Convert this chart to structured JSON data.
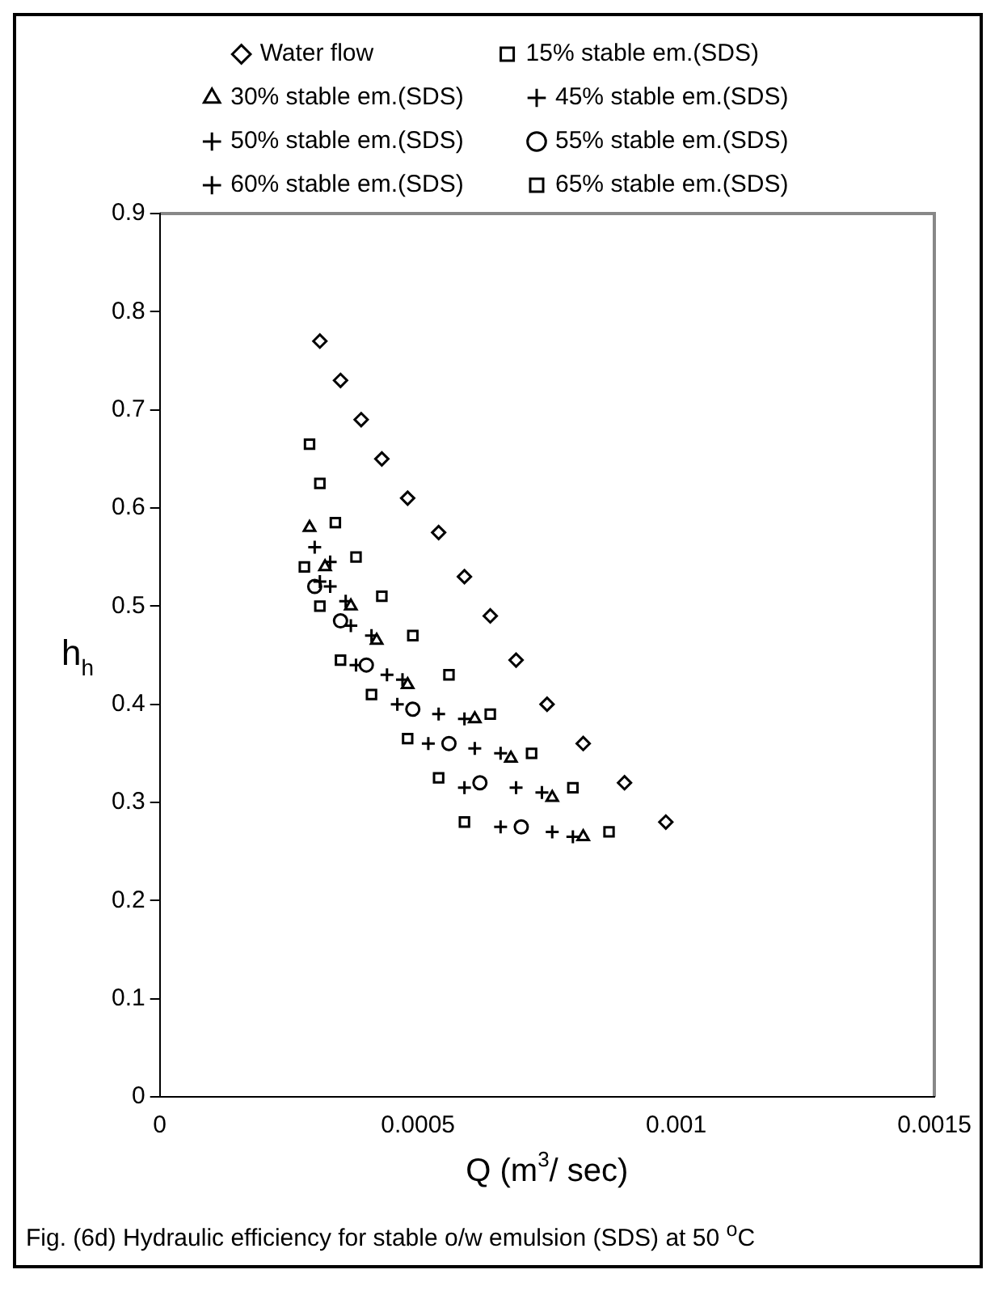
{
  "chart_data": {
    "type": "scatter",
    "xlabel": "Q (m$^{3}$/ sec)",
    "ylabel": "h$_{h}$",
    "annotations": [
      "Fig. (6d) Hydraulic efficiency for stable o/w emulsion (SDS)  at 50 $^{o}$C"
    ],
    "xlim": [
      0,
      0.0015
    ],
    "xticks": [
      0,
      0.0005,
      0.001,
      0.0015
    ],
    "ylim": [
      0,
      0.9
    ],
    "yticks": [
      0,
      0.1,
      0.2,
      0.3,
      0.4,
      0.5,
      0.6,
      0.7,
      0.8,
      0.9
    ],
    "grid": false,
    "legend": "top",
    "series": [
      {
        "name": "Water flow",
        "color": "#000000",
        "marker": "diamond",
        "x": [
          0.00031,
          0.00035,
          0.00039,
          0.00043,
          0.00048,
          0.00054,
          0.00059,
          0.00064,
          0.00069,
          0.00075,
          0.00082,
          0.0009,
          0.00098
        ],
        "values": [
          0.77,
          0.73,
          0.69,
          0.65,
          0.61,
          0.575,
          0.53,
          0.49,
          0.445,
          0.4,
          0.36,
          0.32,
          0.28
        ]
      },
      {
        "name": "15% stable em.(SDS)",
        "color": "#000000",
        "marker": "square",
        "x": [
          0.00029,
          0.00031,
          0.00034,
          0.00038,
          0.00043,
          0.00049,
          0.00056,
          0.00064,
          0.00072,
          0.0008,
          0.00087
        ],
        "values": [
          0.665,
          0.625,
          0.585,
          0.55,
          0.51,
          0.47,
          0.43,
          0.39,
          0.35,
          0.315,
          0.27
        ]
      },
      {
        "name": "30% stable em.(SDS)",
        "color": "#000000",
        "marker": "triangle",
        "x": [
          0.00029,
          0.00032,
          0.00037,
          0.00042,
          0.00048,
          0.00061,
          0.00068,
          0.00076,
          0.00082
        ],
        "values": [
          0.58,
          0.54,
          0.5,
          0.465,
          0.42,
          0.385,
          0.345,
          0.305,
          0.265
        ]
      },
      {
        "name": "45% stable em.(SDS)",
        "color": "#000000",
        "marker": "cross",
        "x": [
          0.0003,
          0.00033,
          0.00036,
          0.00041,
          0.00047,
          0.00059,
          0.00066,
          0.00074,
          0.0008
        ],
        "values": [
          0.56,
          0.545,
          0.505,
          0.47,
          0.425,
          0.385,
          0.35,
          0.31,
          0.265
        ]
      },
      {
        "name": "50% stable em.(SDS)",
        "color": "#000000",
        "marker": "cross",
        "x": [
          0.00031,
          0.00037,
          0.00044,
          0.00054,
          0.00061,
          0.00069,
          0.00076
        ],
        "values": [
          0.525,
          0.48,
          0.43,
          0.39,
          0.355,
          0.315,
          0.27
        ]
      },
      {
        "name": "55% stable em.(SDS)",
        "color": "#000000",
        "marker": "circle",
        "x": [
          0.0003,
          0.00035,
          0.0004,
          0.00049,
          0.00056,
          0.00062,
          0.0007
        ],
        "values": [
          0.52,
          0.485,
          0.44,
          0.395,
          0.36,
          0.32,
          0.275
        ]
      },
      {
        "name": "60% stable em.(SDS)",
        "color": "#000000",
        "marker": "cross",
        "x": [
          0.00033,
          0.00038,
          0.00046,
          0.00052,
          0.00059,
          0.00066
        ],
        "values": [
          0.52,
          0.44,
          0.4,
          0.36,
          0.315,
          0.275
        ]
      },
      {
        "name": "65% stable em.(SDS)",
        "color": "#000000",
        "marker": "square",
        "x": [
          0.00028,
          0.00031,
          0.00035,
          0.00041,
          0.00048,
          0.00054,
          0.00059
        ],
        "values": [
          0.54,
          0.5,
          0.445,
          0.41,
          0.365,
          0.325,
          0.28
        ]
      }
    ]
  }
}
